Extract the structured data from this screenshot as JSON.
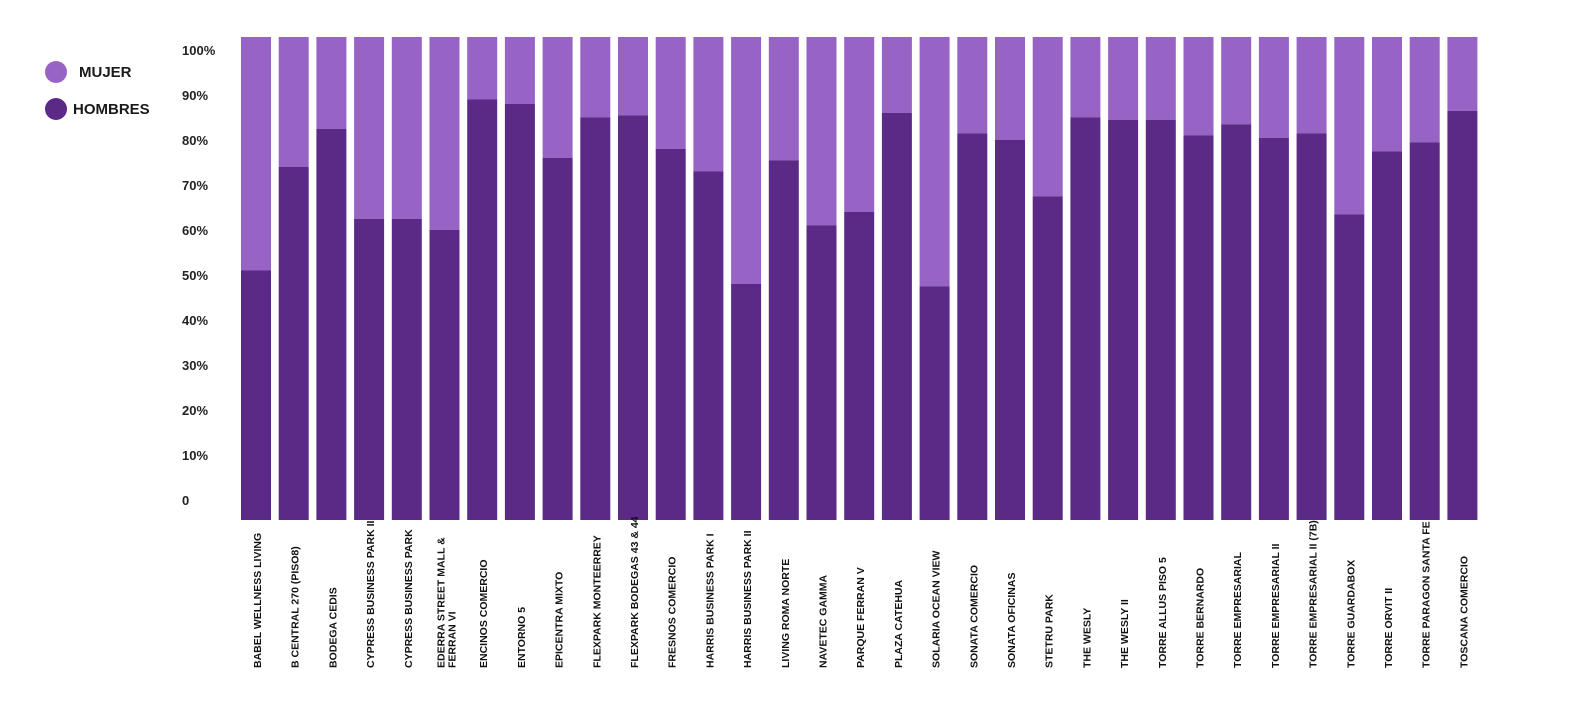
{
  "legend": {
    "mujer_label": "MUJER",
    "hombres_label": "HOMBRES"
  },
  "colors": {
    "mujer": "#9763c4",
    "hombres": "#5b2a86"
  },
  "chart_data": {
    "type": "bar",
    "stacked": true,
    "title": "",
    "xlabel": "",
    "ylabel": "",
    "ylim": [
      0,
      100
    ],
    "ytick_labels": [
      "0",
      "10%",
      "20%",
      "30%",
      "40%",
      "50%",
      "60%",
      "70%",
      "80%",
      "90%",
      "100%"
    ],
    "legend_position": "top-left",
    "grid": false,
    "categories": [
      "BABEL WELLNESS LIVING",
      "B CENTRAL 270 (PISO8)",
      "BODEGA CEDIS",
      "CYPRESS BUSINESS PARK II",
      "CYPRESS BUSINESS PARK",
      "EDERRA STREET MALL & FERRAN VI",
      "ENCINOS COMERCIO",
      "ENTORNO 5",
      "EPICENTRA MIXTO",
      "FLEXPARK MONTEERREY",
      "FLEXPARK BODEGAS 43 & 44",
      "FRESNOS COMERCIO",
      "HARRIS BUSINESS PARK I",
      "HARRIS BUSINESS PARK II",
      "LIVING ROMA NORTE",
      "NAVETEC GAMMA",
      "PARQUE FERRAN V",
      "PLAZA CATEHUA",
      "SOLARIA OCEAN VIEW",
      "SONATA COMERCIO",
      "SONATA OFICINAS",
      "STETRU PARK",
      "THE WESLY",
      "THE WESLY II",
      "TORRE ALLUS PISO 5",
      "TORRE BERNARDO",
      "TORRE EMPRESARIAL",
      "TORRE EMPRESARIAL II",
      "TORRE EMPRESARIAL II (7B)",
      "TORRE GUARDABOX",
      "TORRE ORVIT II",
      "TORRE PARAGON SANTA FE",
      "TOSCANA COMERCIO"
    ],
    "series": [
      {
        "name": "HOMBRES",
        "values": [
          51,
          74,
          82.5,
          62.5,
          62.5,
          60,
          89,
          88,
          76,
          85,
          85.5,
          78,
          73,
          48,
          75.5,
          61,
          64,
          86,
          47.5,
          81.5,
          80,
          67.5,
          85,
          84.5,
          84.5,
          81,
          83.5,
          80.5,
          81.5,
          63.5,
          77.5,
          79.5,
          86.5
        ]
      },
      {
        "name": "MUJER",
        "values": [
          49,
          26,
          17.5,
          37.5,
          37.5,
          40,
          11,
          12,
          24,
          15,
          14.5,
          22,
          27,
          52,
          24.5,
          39,
          36,
          14,
          52.5,
          18.5,
          20,
          32.5,
          15,
          15.5,
          15.5,
          19,
          16.5,
          19.5,
          18.5,
          36.5,
          22.5,
          20.5,
          13.5
        ]
      }
    ]
  }
}
